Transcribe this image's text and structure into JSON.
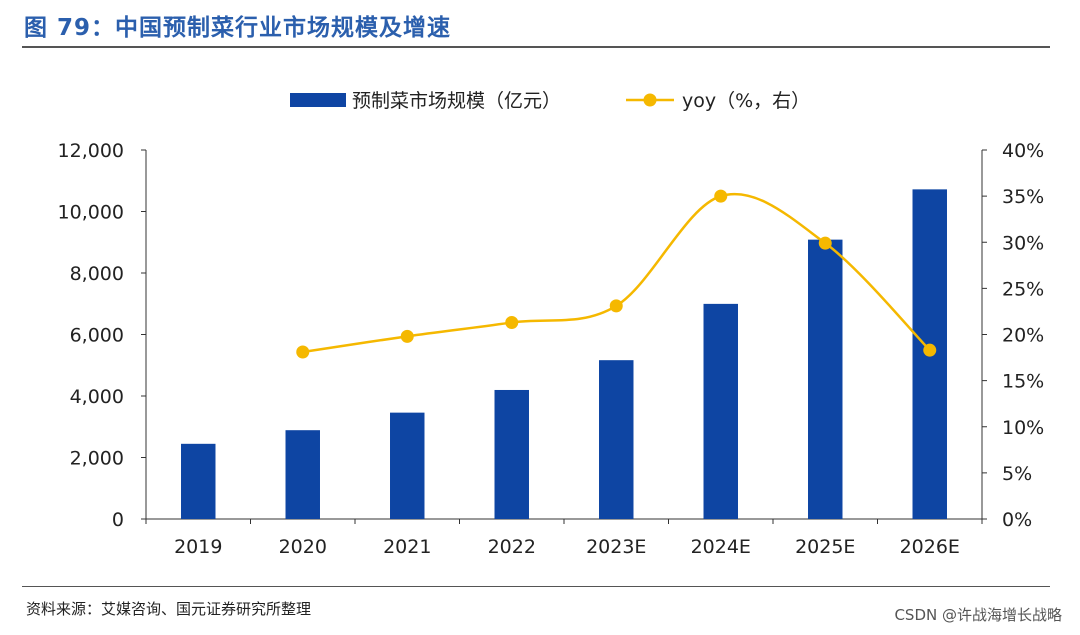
{
  "figure": {
    "title": "图 79：中国预制菜行业市场规模及增速",
    "source": "资料来源：艾媒咨询、国元证券研究所整理",
    "watermark": "CSDN @许战海增长战略"
  },
  "colors": {
    "bar": "#0e45a3",
    "line": "#f5b800",
    "title": "#2b5fad",
    "axis": "#333333"
  },
  "chart_data": {
    "type": "bar+line",
    "categories": [
      "2019",
      "2020",
      "2021",
      "2022",
      "2023E",
      "2024E",
      "2025E",
      "2026E"
    ],
    "series": [
      {
        "name": "预制菜市场规模（亿元）",
        "type": "bar",
        "axis": "left",
        "values": [
          2445,
          2888,
          3459,
          4196,
          5165,
          6996,
          9085,
          10720
        ]
      },
      {
        "name": "yoy（%，右）",
        "type": "line",
        "axis": "right",
        "values": [
          null,
          18.1,
          19.8,
          21.3,
          23.1,
          35.0,
          29.9,
          18.3
        ]
      }
    ],
    "y_left": {
      "min": 0,
      "max": 12000,
      "ticks": [
        "0",
        "2,000",
        "4,000",
        "6,000",
        "8,000",
        "10,000",
        "12,000"
      ]
    },
    "y_right": {
      "min": 0,
      "max": 40,
      "ticks": [
        "0%",
        "5%",
        "10%",
        "15%",
        "20%",
        "25%",
        "30%",
        "35%",
        "40%"
      ]
    },
    "legend_position": "top-center",
    "grid": false
  }
}
